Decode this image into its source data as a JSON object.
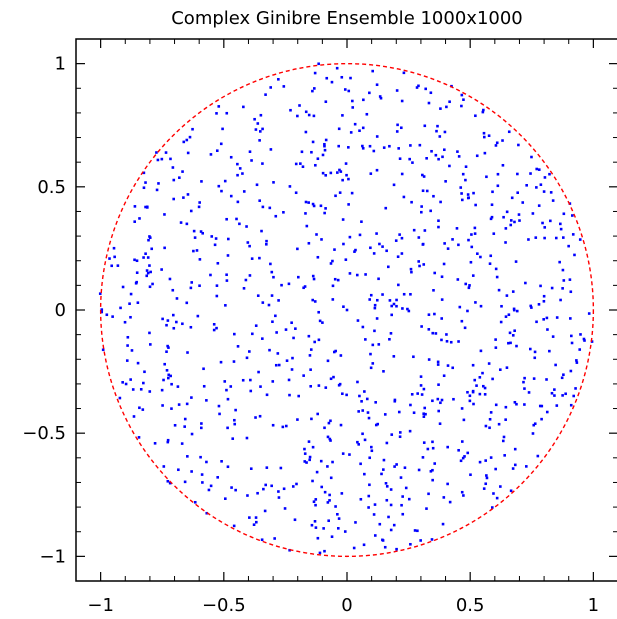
{
  "chart_data": {
    "type": "scatter",
    "title": "Complex Ginibre Ensemble 1000x1000",
    "xlabel": "",
    "ylabel": "",
    "xlim": [
      -1.1,
      1.1
    ],
    "ylim": [
      -1.1,
      1.1
    ],
    "x_ticks": [
      -1,
      -0.5,
      0,
      0.5,
      1
    ],
    "y_ticks": [
      -1,
      -0.5,
      0,
      0.5,
      1
    ],
    "x_tick_labels": [
      "−1",
      "−0.5",
      "0",
      "0.5",
      "1"
    ],
    "y_tick_labels": [
      "−1",
      "−0.5",
      "0",
      "0.5",
      "1"
    ],
    "grid": false,
    "point_count": 1000,
    "point_color": "#0000ff",
    "reference_curve": {
      "shape": "unit-circle",
      "center": [
        0,
        0
      ],
      "radius": 1,
      "color": "#ff0000",
      "style": "dashed"
    },
    "sample_points": [
      [
        0.0,
        0.0
      ],
      [
        0.52,
        0.31
      ],
      [
        -0.47,
        0.62
      ],
      [
        0.11,
        -0.83
      ],
      [
        -0.74,
        -0.22
      ],
      [
        0.88,
        0.12
      ],
      [
        -0.33,
        -0.71
      ],
      [
        0.29,
        0.91
      ],
      [
        -0.93,
        0.18
      ],
      [
        0.64,
        -0.59
      ]
    ]
  }
}
